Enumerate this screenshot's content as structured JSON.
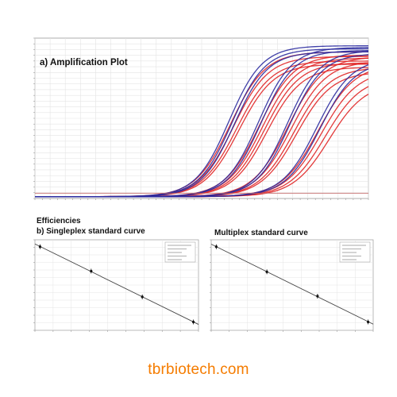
{
  "header": {
    "amp_title": "a) Amplification Plot",
    "efficiencies": "Efficiencies",
    "singleplex_title": "b) Singleplex standard curve",
    "multiplex_title": "Multiplex standard curve"
  },
  "footer": {
    "credit": "tbrbiotech.com"
  },
  "colors": {
    "blue_series": "#2a2a9e",
    "red_series": "#e02424",
    "threshold": "#c46a6a",
    "grid": "#e4e4e4",
    "credit": "#f57c00"
  },
  "chart_data": [
    {
      "type": "line",
      "title": "a) Amplification Plot",
      "xlabel": "",
      "ylabel": "",
      "xlim": [
        1,
        45
      ],
      "ylim": [
        0,
        1.05
      ],
      "grid": true,
      "threshold": 0.035,
      "baseline": 0.012,
      "series": [
        {
          "color": "blue",
          "midpoints": [
            26.6,
            27.0,
            27.3
          ],
          "plateau": [
            1.0,
            0.98,
            0.96
          ],
          "slope": 2.2
        },
        {
          "color": "red",
          "midpoints": [
            26.8,
            27.2,
            27.6,
            27.9
          ],
          "plateau": [
            0.96,
            0.93,
            0.9,
            0.88
          ],
          "slope": 2.3
        },
        {
          "color": "blue",
          "midpoints": [
            30.5,
            30.8
          ],
          "plateau": [
            0.99,
            0.97
          ],
          "slope": 2.2
        },
        {
          "color": "red",
          "midpoints": [
            30.6,
            31.0,
            31.3,
            31.6
          ],
          "plateau": [
            0.94,
            0.92,
            0.89,
            0.86
          ],
          "slope": 2.3
        },
        {
          "color": "blue",
          "midpoints": [
            34.3,
            34.6
          ],
          "plateau": [
            0.97,
            0.95
          ],
          "slope": 2.2
        },
        {
          "color": "red",
          "midpoints": [
            34.4,
            34.8,
            35.2,
            35.5
          ],
          "plateau": [
            0.93,
            0.9,
            0.86,
            0.83
          ],
          "slope": 2.35
        },
        {
          "color": "blue",
          "midpoints": [
            38.2,
            38.6
          ],
          "plateau": [
            0.92,
            0.9
          ],
          "slope": 2.3
        },
        {
          "color": "red",
          "midpoints": [
            38.4,
            38.8,
            39.3,
            39.8
          ],
          "plateau": [
            0.88,
            0.84,
            0.8,
            0.76
          ],
          "slope": 2.4
        }
      ]
    },
    {
      "type": "scatter",
      "title": "b) Singleplex standard curve",
      "trend": "linear",
      "x": [
        0,
        1,
        2,
        3
      ],
      "y": [
        34,
        30.5,
        26.8,
        23.2
      ],
      "xlim": [
        -0.1,
        3.1
      ],
      "ylim": [
        22,
        35
      ],
      "grid": true
    },
    {
      "type": "scatter",
      "title": "Multiplex standard curve",
      "trend": "linear",
      "x": [
        0,
        1,
        2,
        3
      ],
      "y": [
        34,
        30.4,
        26.9,
        23.2
      ],
      "xlim": [
        -0.1,
        3.1
      ],
      "ylim": [
        22,
        35
      ],
      "grid": true
    }
  ]
}
